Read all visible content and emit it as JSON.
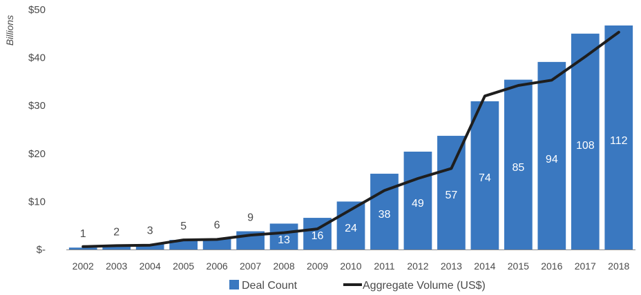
{
  "chart_data": {
    "type": "bar",
    "title": "",
    "ylabel": "Billions",
    "xlabel": "",
    "categories": [
      "2002",
      "2003",
      "2004",
      "2005",
      "2006",
      "2007",
      "2008",
      "2009",
      "2010",
      "2011",
      "2012",
      "2013",
      "2014",
      "2015",
      "2016",
      "2017",
      "2018"
    ],
    "ylim": [
      0,
      50
    ],
    "yticks": [
      {
        "value": 0,
        "label": "$-"
      },
      {
        "value": 10,
        "label": "$10"
      },
      {
        "value": 20,
        "label": "$20"
      },
      {
        "value": 30,
        "label": "$30"
      },
      {
        "value": 40,
        "label": "$40"
      },
      {
        "value": 50,
        "label": "$50"
      }
    ],
    "grid": false,
    "legend_position": "bottom",
    "series": [
      {
        "name": "Deal Count",
        "kind": "bar",
        "color": "#3a78c0",
        "bar_heights_usd_billions": [
          0.4,
          0.8,
          1.1,
          2.0,
          2.2,
          3.8,
          5.4,
          6.6,
          10.0,
          15.8,
          20.4,
          23.7,
          30.9,
          35.4,
          39.1,
          45.0,
          46.7
        ],
        "labels": [
          "1",
          "2",
          "3",
          "5",
          "6",
          "9",
          "13",
          "16",
          "24",
          "38",
          "49",
          "57",
          "74",
          "85",
          "94",
          "108",
          "112"
        ]
      },
      {
        "name": "Aggregate Volume (US$)",
        "kind": "line",
        "color": "#1e1e1e",
        "values": [
          0.6,
          0.8,
          0.9,
          2.0,
          2.1,
          3.0,
          3.5,
          4.3,
          8.3,
          12.3,
          14.8,
          16.9,
          32.0,
          34.2,
          35.3,
          40.2,
          45.3
        ]
      }
    ]
  }
}
